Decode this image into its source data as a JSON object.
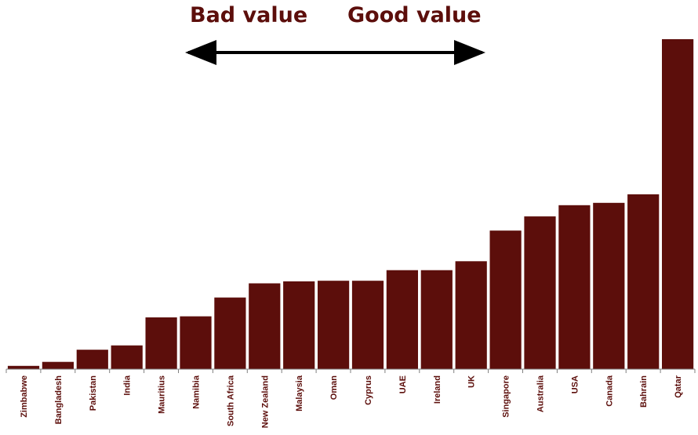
{
  "annotations": {
    "bad_label": "Bad value",
    "good_label": "Good value"
  },
  "chart_data": {
    "type": "bar",
    "title": "",
    "xlabel": "",
    "ylabel": "",
    "ylim": [
      0,
      100
    ],
    "grid": false,
    "legend": "none",
    "bar_color": "#5c0e0b",
    "axis_color": "#808080",
    "categories": [
      "Zimbabwe",
      "Bangladesh",
      "Pakistan",
      "India",
      "Mauritius",
      "Namibia",
      "South Africa",
      "New Zealand",
      "Malaysia",
      "Oman",
      "Cyprus",
      "UAE",
      "Ireland",
      "UK",
      "Singapore",
      "Australia",
      "USA",
      "Canada",
      "Bahrain",
      "Qatar"
    ],
    "values": [
      1.0,
      2.2,
      5.9,
      7.2,
      15.7,
      16.0,
      21.7,
      26.0,
      26.6,
      26.8,
      26.8,
      30.0,
      30.0,
      32.7,
      42.0,
      46.3,
      49.7,
      50.4,
      53.0,
      100
    ]
  }
}
